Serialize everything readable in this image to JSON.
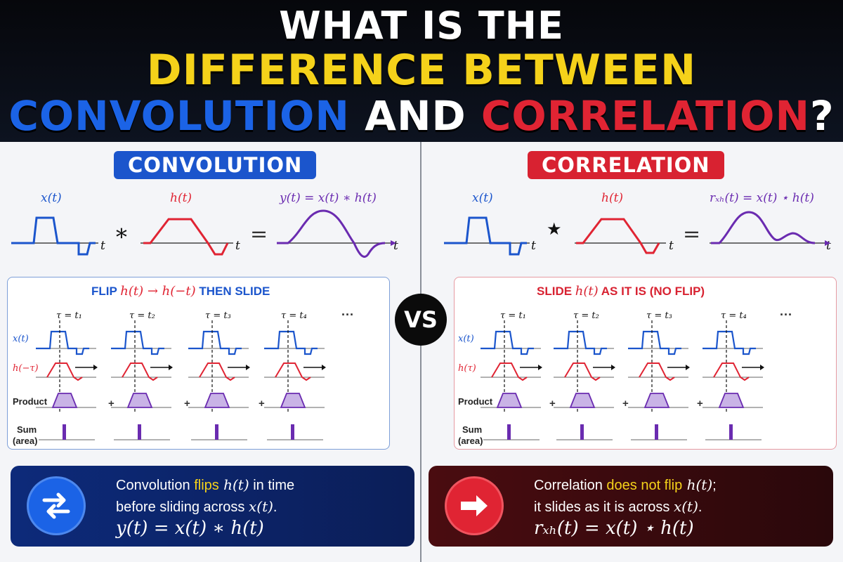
{
  "header": {
    "line1": "WHAT IS THE",
    "line2": "DIFFERENCE BETWEEN",
    "line3a": "CONVOLUTION",
    "line3b": " AND ",
    "line3c": "CORRELATION",
    "line3d": "?"
  },
  "vs_label": "VS",
  "convolution": {
    "pill": "CONVOLUTION",
    "x_label": "x(t)",
    "h_label": "h(t)",
    "y_label": "y(t) = x(t) ∗ h(t)",
    "operator": "∗",
    "equals": "=",
    "t_label": "t",
    "panel_title_pre": "FLIP ",
    "panel_title_math": "h(t) → h(−t)",
    "panel_title_post": " THEN SLIDE",
    "row_labels": [
      "x(t)",
      "h(−τ)",
      "Product",
      "Sum",
      "(area)"
    ],
    "taus": [
      "τ = t₁",
      "τ = t₂",
      "τ = t₃",
      "τ = t₄"
    ],
    "ellipsis": "···",
    "plus": "+",
    "summary_pre": "Convolution ",
    "summary_key": "flips",
    "summary_math1": " h(t)",
    "summary_mid": " in time",
    "summary_line2_pre": "before sliding across ",
    "summary_line2_math": "x(t)",
    "summary_line2_post": ".",
    "summary_formula": "y(t) = x(t) ∗ h(t)"
  },
  "correlation": {
    "pill": "CORRELATION",
    "x_label": "x(t)",
    "h_label": "h(t)",
    "y_label": "rₓₕ(t) = x(t) ⋆ h(t)",
    "operator": "★",
    "equals": "=",
    "t_label": "t",
    "panel_title_pre": "SLIDE ",
    "panel_title_math": "h(t)",
    "panel_title_post": " AS IT IS (NO FLIP)",
    "row_labels": [
      "x(t)",
      "h(τ)",
      "Product",
      "Sum",
      "(area)"
    ],
    "taus": [
      "τ = t₁",
      "τ = t₂",
      "τ = t₃",
      "τ = t₄"
    ],
    "ellipsis": "···",
    "plus": "+",
    "summary_pre": "Correlation ",
    "summary_key": "does not flip",
    "summary_math1": " h(t)",
    "summary_mid": ";",
    "summary_line2_pre": "it slides as it is across ",
    "summary_line2_math": "x(t)",
    "summary_line2_post": ".",
    "summary_formula": "rₓₕ(t) = x(t) ⋆ h(t)"
  },
  "colors": {
    "signal_x": "#1b55cc",
    "signal_h": "#e02433",
    "signal_y": "#6a2bb0"
  },
  "icons": {
    "conv_icon": "swap-arrows-icon",
    "corr_icon": "right-arrow-icon"
  }
}
